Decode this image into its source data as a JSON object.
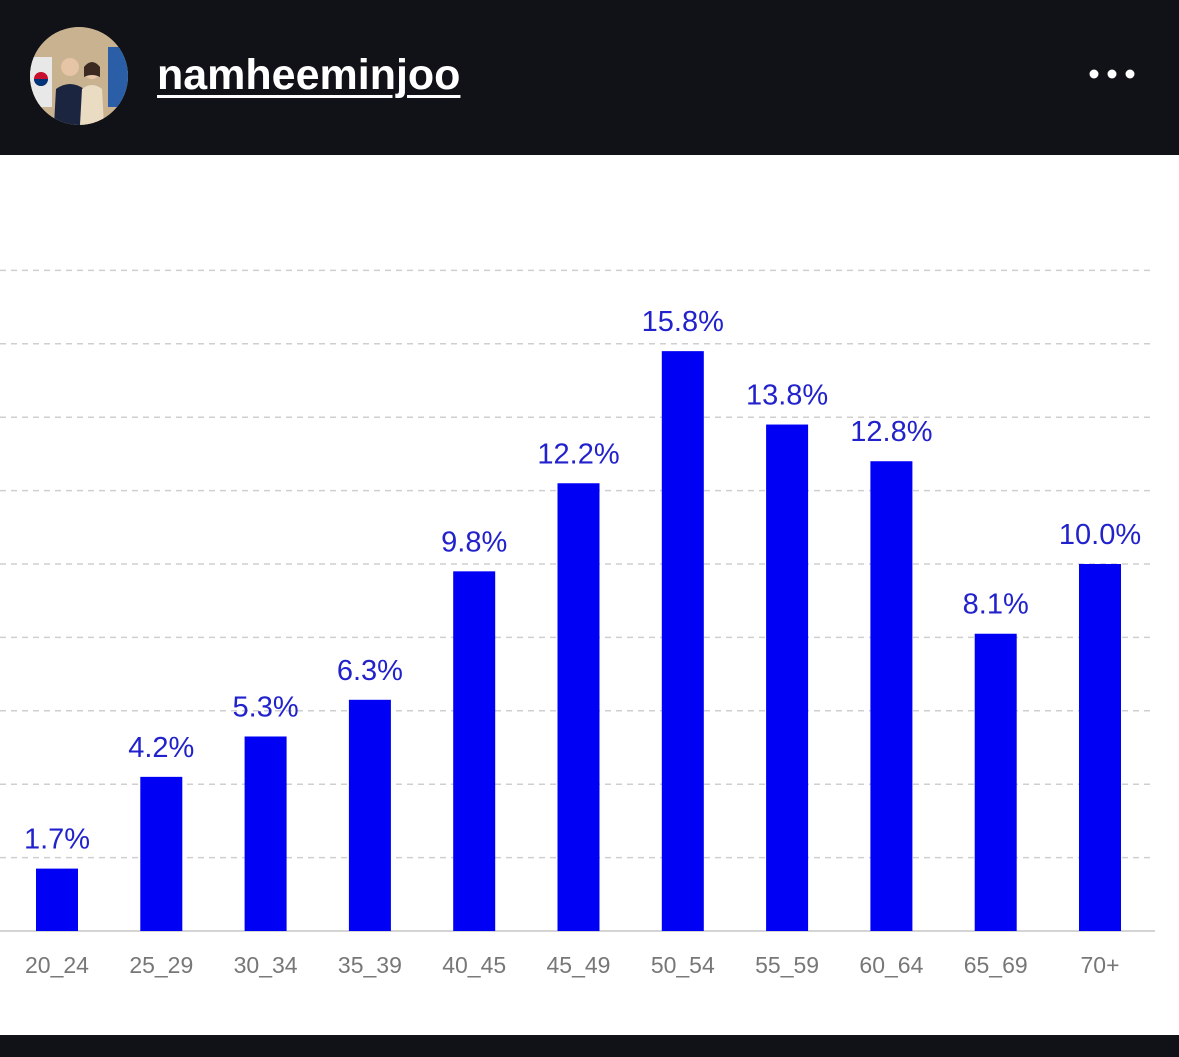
{
  "post": {
    "username": "namheeminjoo",
    "avatar_icon": "profile-photo-avatar",
    "more_icon": "more-options-icon"
  },
  "colors": {
    "bar": "#0000f5",
    "label": "#2222cc",
    "tick": "#777777",
    "grid": "#cfcfcf",
    "header": "#101218"
  },
  "chart_data": {
    "type": "bar",
    "categories": [
      "20_24",
      "25_29",
      "30_34",
      "35_39",
      "40_45",
      "45_49",
      "50_54",
      "55_59",
      "60_64",
      "65_69",
      "70+"
    ],
    "values": [
      1.7,
      4.2,
      5.3,
      6.3,
      9.8,
      12.2,
      15.8,
      13.8,
      12.8,
      8.1,
      10.0
    ],
    "data_labels": [
      "1.7%",
      "4.2%",
      "5.3%",
      "6.3%",
      "9.8%",
      "12.2%",
      "15.8%",
      "13.8%",
      "12.8%",
      "8.1%",
      "10.0%"
    ],
    "unit": "%",
    "ylim": [
      0,
      18
    ],
    "grid": true,
    "legend": false
  }
}
